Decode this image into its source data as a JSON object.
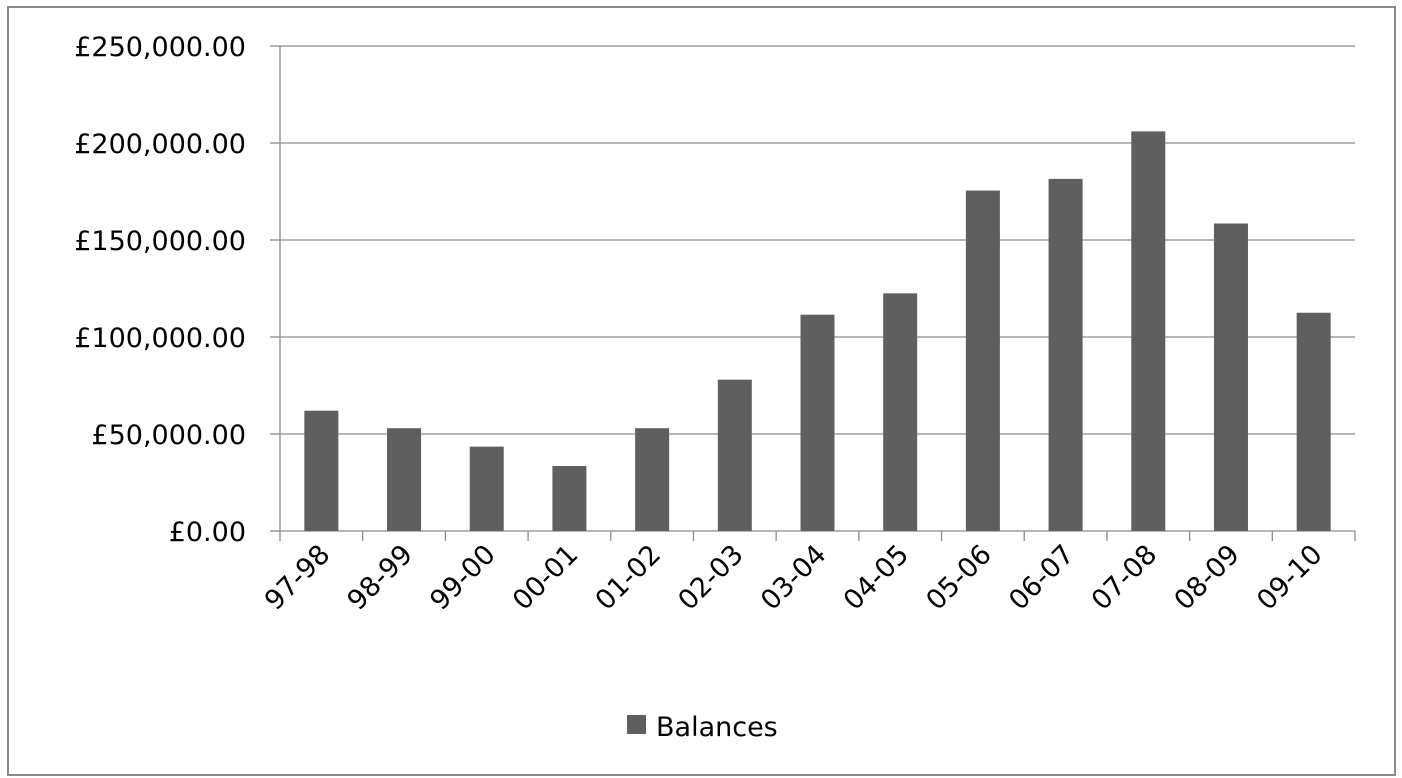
{
  "chart_data": {
    "type": "bar",
    "categories": [
      "97-98",
      "98-99",
      "99-00",
      "00-01",
      "01-02",
      "02-03",
      "03-04",
      "04-05",
      "05-06",
      "06-07",
      "07-08",
      "08-09",
      "09-10"
    ],
    "series": [
      {
        "name": "Balances",
        "color": "#5f5f5f",
        "values": [
          62000,
          53000,
          43500,
          33500,
          53000,
          78000,
          111500,
          122500,
          175500,
          181500,
          206000,
          158500,
          112500
        ]
      }
    ],
    "ylim": [
      0,
      250000
    ],
    "yticks": [
      0,
      50000,
      100000,
      150000,
      200000,
      250000
    ],
    "ytick_labels": [
      "£0.00",
      "£50,000.00",
      "£100,000.00",
      "£150,000.00",
      "£200,000.00",
      "£250,000.00"
    ],
    "grid": true,
    "legend_position": "bottom",
    "title": "",
    "xlabel": "",
    "ylabel": ""
  }
}
